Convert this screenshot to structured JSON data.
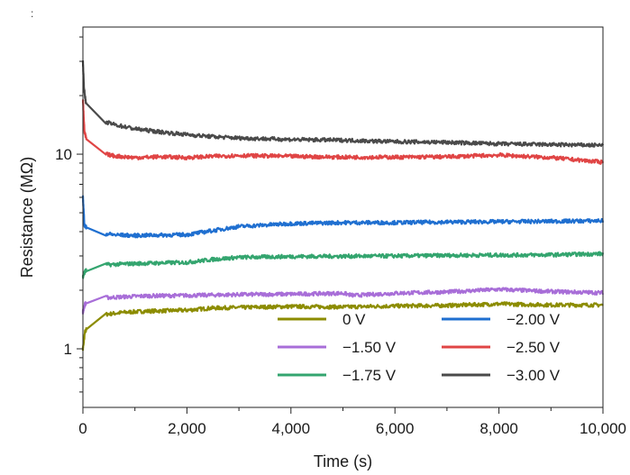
{
  "corner_mark": ":",
  "chart_data": {
    "type": "line",
    "title": "",
    "xlabel": "Time (s)",
    "ylabel": "Resistance (MΩ)",
    "xlim": [
      0,
      10000
    ],
    "ylim": [
      0.5,
      45
    ],
    "yscale": "log",
    "grid": false,
    "legend_position": "bottom-right",
    "x_ticks": [
      {
        "value": 0,
        "label": "0"
      },
      {
        "value": 2000,
        "label": "2,000"
      },
      {
        "value": 4000,
        "label": "4,000"
      },
      {
        "value": 6000,
        "label": "6,000"
      },
      {
        "value": 8000,
        "label": "8,000"
      },
      {
        "value": 10000,
        "label": "10,000"
      }
    ],
    "y_ticks": [
      {
        "value": 1,
        "label": "1"
      },
      {
        "value": 10,
        "label": "10"
      }
    ],
    "series": [
      {
        "name": "0 V",
        "color": "#8c8c00",
        "points": [
          [
            0,
            1.0
          ],
          [
            40,
            1.22
          ],
          [
            150,
            1.38
          ],
          [
            400,
            1.5
          ],
          [
            800,
            1.54
          ],
          [
            1200,
            1.56
          ],
          [
            2000,
            1.58
          ],
          [
            2500,
            1.62
          ],
          [
            3000,
            1.63
          ],
          [
            4000,
            1.65
          ],
          [
            5000,
            1.64
          ],
          [
            6000,
            1.66
          ],
          [
            7000,
            1.67
          ],
          [
            8000,
            1.7
          ],
          [
            9000,
            1.68
          ],
          [
            10000,
            1.68
          ]
        ]
      },
      {
        "name": "−1.50 V",
        "color": "#a86ed8",
        "points": [
          [
            0,
            1.55
          ],
          [
            40,
            1.7
          ],
          [
            150,
            1.78
          ],
          [
            400,
            1.83
          ],
          [
            800,
            1.85
          ],
          [
            1200,
            1.87
          ],
          [
            2000,
            1.88
          ],
          [
            3000,
            1.9
          ],
          [
            4000,
            1.91
          ],
          [
            5000,
            1.93
          ],
          [
            5200,
            1.88
          ],
          [
            6000,
            1.93
          ],
          [
            7000,
            1.96
          ],
          [
            8000,
            2.02
          ],
          [
            9000,
            1.97
          ],
          [
            10000,
            1.94
          ]
        ]
      },
      {
        "name": "−1.75 V",
        "color": "#34a56f",
        "points": [
          [
            0,
            2.35
          ],
          [
            40,
            2.5
          ],
          [
            150,
            2.62
          ],
          [
            400,
            2.7
          ],
          [
            800,
            2.73
          ],
          [
            1200,
            2.75
          ],
          [
            2000,
            2.78
          ],
          [
            2500,
            2.88
          ],
          [
            3000,
            2.95
          ],
          [
            4000,
            2.98
          ],
          [
            5000,
            2.99
          ],
          [
            6000,
            3.0
          ],
          [
            7000,
            3.02
          ],
          [
            8000,
            3.03
          ],
          [
            9000,
            3.04
          ],
          [
            10000,
            3.08
          ]
        ]
      },
      {
        "name": "−2.00 V",
        "color": "#1f6fd0",
        "points": [
          [
            0,
            6.0
          ],
          [
            30,
            4.3
          ],
          [
            100,
            4.1
          ],
          [
            300,
            3.95
          ],
          [
            600,
            3.85
          ],
          [
            1000,
            3.82
          ],
          [
            1500,
            3.84
          ],
          [
            2000,
            3.86
          ],
          [
            2500,
            4.05
          ],
          [
            3000,
            4.25
          ],
          [
            4000,
            4.4
          ],
          [
            5000,
            4.45
          ],
          [
            6000,
            4.45
          ],
          [
            7000,
            4.48
          ],
          [
            8000,
            4.5
          ],
          [
            9000,
            4.52
          ],
          [
            10000,
            4.55
          ]
        ]
      },
      {
        "name": "−2.50 V",
        "color": "#e04545",
        "points": [
          [
            0,
            19.0
          ],
          [
            30,
            13.0
          ],
          [
            100,
            11.0
          ],
          [
            300,
            10.2
          ],
          [
            600,
            9.8
          ],
          [
            1000,
            9.6
          ],
          [
            1500,
            9.7
          ],
          [
            2000,
            9.6
          ],
          [
            2500,
            9.75
          ],
          [
            3000,
            9.85
          ],
          [
            4000,
            9.75
          ],
          [
            5000,
            9.65
          ],
          [
            6000,
            9.65
          ],
          [
            7000,
            9.7
          ],
          [
            8000,
            9.9
          ],
          [
            9000,
            9.6
          ],
          [
            10000,
            9.1
          ]
        ]
      },
      {
        "name": "−3.00 V",
        "color": "#4a4a4a",
        "points": [
          [
            0,
            30.0
          ],
          [
            20,
            22.0
          ],
          [
            60,
            18.0
          ],
          [
            150,
            16.0
          ],
          [
            300,
            15.0
          ],
          [
            600,
            14.2
          ],
          [
            1000,
            13.5
          ],
          [
            1500,
            13.0
          ],
          [
            2000,
            12.6
          ],
          [
            2500,
            12.3
          ],
          [
            3000,
            12.1
          ],
          [
            4000,
            11.9
          ],
          [
            5000,
            11.8
          ],
          [
            6000,
            11.6
          ],
          [
            7000,
            11.5
          ],
          [
            8000,
            11.3
          ],
          [
            9000,
            11.2
          ],
          [
            10000,
            11.1
          ]
        ]
      }
    ]
  }
}
